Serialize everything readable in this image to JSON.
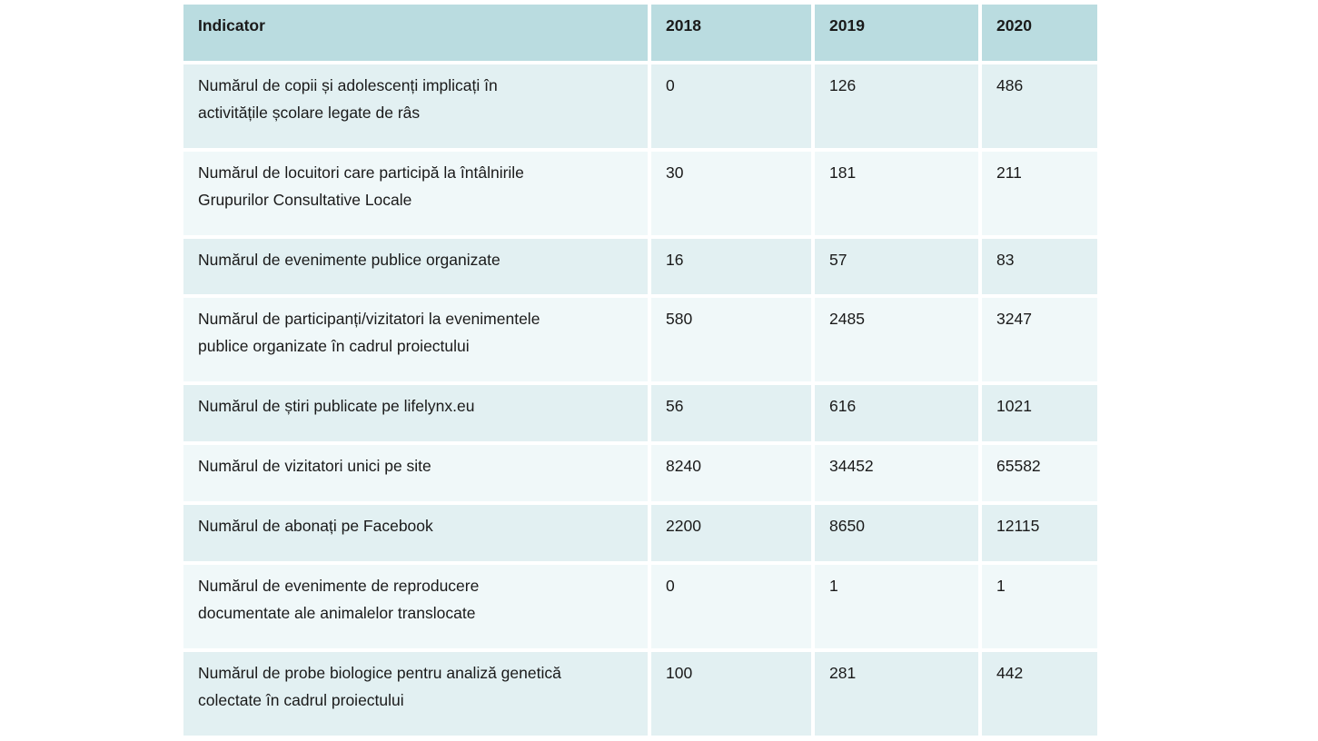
{
  "colors": {
    "header_bg": "#badce0",
    "row_band_dark": "#e2f0f2",
    "row_band_light": "#f0f8f9",
    "text": "#1a1a1a",
    "page_bg": "#ffffff"
  },
  "table": {
    "columns": [
      "Indicator",
      "2018",
      "2019",
      "2020"
    ],
    "rows": [
      {
        "indicator": "Numărul de copii și adolescenți implicați în\nactivitățile școlare legate de râs",
        "values": [
          "0",
          "126",
          "486"
        ]
      },
      {
        "indicator": "Numărul de locuitori care participă la întâlnirile\nGrupurilor Consultative Locale",
        "values": [
          "30",
          "181",
          "211"
        ]
      },
      {
        "indicator": "Numărul de evenimente publice organizate",
        "values": [
          "16",
          "57",
          "83"
        ]
      },
      {
        "indicator": "Numărul de participanți/vizitatori la evenimentele\npublice organizate în cadrul proiectului",
        "values": [
          "580",
          "2485",
          "3247"
        ]
      },
      {
        "indicator": "Numărul de știri publicate pe lifelynx.eu",
        "values": [
          "56",
          "616",
          "1021"
        ]
      },
      {
        "indicator": "Numărul de vizitatori unici pe site",
        "values": [
          "8240",
          "34452",
          "65582"
        ]
      },
      {
        "indicator": "Numărul de abonați pe Facebook",
        "values": [
          "2200",
          "8650",
          "12115"
        ]
      },
      {
        "indicator": "Numărul de evenimente de reproducere\ndocumentate ale animalelor translocate",
        "values": [
          "0",
          "1",
          "1"
        ]
      },
      {
        "indicator": "Numărul de probe biologice pentru analiză genetică\ncolectate în cadrul proiectului",
        "values": [
          "100",
          "281",
          "442"
        ]
      }
    ]
  }
}
